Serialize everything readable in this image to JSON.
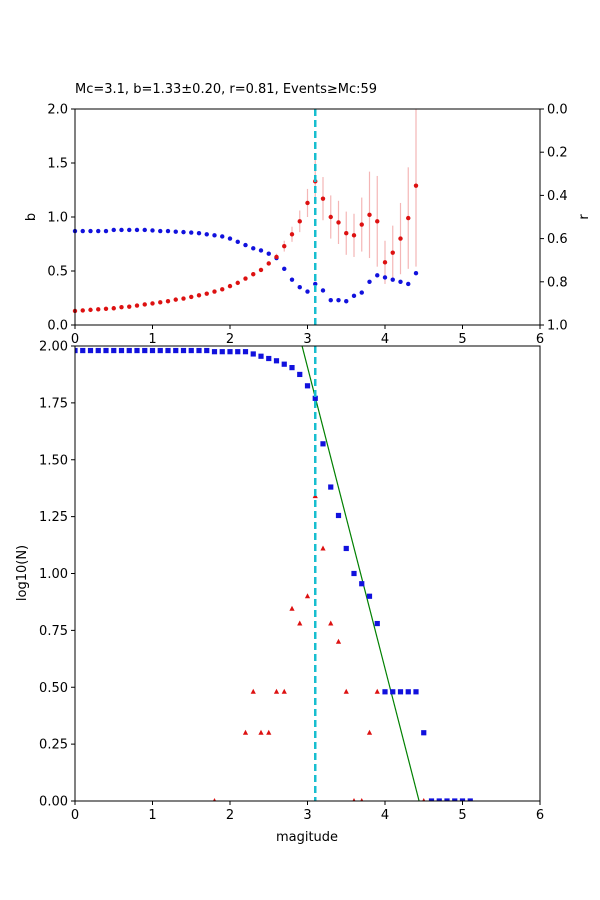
{
  "chart_data": [
    {
      "type": "scatter",
      "title": "Mc=3.1, b=1.33±0.20, r=0.81, Events≥Mc:59",
      "xlabel": "",
      "ylabel": "b",
      "y2label": "r",
      "xlim": [
        0,
        6
      ],
      "ylim": [
        0,
        2
      ],
      "y2lim": [
        1,
        0
      ],
      "xticks": [
        "0",
        "1",
        "2",
        "3",
        "4",
        "5",
        "6"
      ],
      "yticks": [
        "0.0",
        "0.5",
        "1.0",
        "1.5",
        "2.0"
      ],
      "y2ticks": [
        "0.0",
        "0.2",
        "0.4",
        "0.6",
        "0.8",
        "1.0"
      ],
      "mc_line": 3.1,
      "series": [
        {
          "axis": "left",
          "color": "#dd1111",
          "errcolor": "#f4b6b6",
          "points": [
            [
              0.0,
              0.13,
              0
            ],
            [
              0.1,
              0.135,
              0
            ],
            [
              0.2,
              0.14,
              0
            ],
            [
              0.3,
              0.145,
              0
            ],
            [
              0.4,
              0.15,
              0
            ],
            [
              0.5,
              0.155,
              0
            ],
            [
              0.6,
              0.165,
              0
            ],
            [
              0.7,
              0.17,
              0
            ],
            [
              0.8,
              0.18,
              0
            ],
            [
              0.9,
              0.19,
              0
            ],
            [
              1.0,
              0.2,
              0
            ],
            [
              1.1,
              0.21,
              0
            ],
            [
              1.2,
              0.22,
              0
            ],
            [
              1.3,
              0.235,
              0
            ],
            [
              1.4,
              0.245,
              0
            ],
            [
              1.5,
              0.26,
              0
            ],
            [
              1.6,
              0.275,
              0
            ],
            [
              1.7,
              0.29,
              0
            ],
            [
              1.8,
              0.31,
              0
            ],
            [
              1.9,
              0.33,
              0
            ],
            [
              2.0,
              0.36,
              0
            ],
            [
              2.1,
              0.39,
              0
            ],
            [
              2.2,
              0.43,
              0
            ],
            [
              2.3,
              0.47,
              0
            ],
            [
              2.4,
              0.51,
              0
            ],
            [
              2.5,
              0.57,
              0.02
            ],
            [
              2.6,
              0.63,
              0.03
            ],
            [
              2.7,
              0.73,
              0.05
            ],
            [
              2.8,
              0.84,
              0.07
            ],
            [
              2.9,
              0.96,
              0.1
            ],
            [
              3.0,
              1.13,
              0.13
            ],
            [
              3.1,
              1.33,
              0.2
            ],
            [
              3.2,
              1.17,
              0.2
            ],
            [
              3.3,
              1.0,
              0.2
            ],
            [
              3.4,
              0.95,
              0.2
            ],
            [
              3.5,
              0.85,
              0.2
            ],
            [
              3.6,
              0.83,
              0.2
            ],
            [
              3.7,
              0.93,
              0.25
            ],
            [
              3.8,
              1.02,
              0.4
            ],
            [
              3.9,
              0.96,
              0.42
            ],
            [
              4.0,
              0.58,
              0.2
            ],
            [
              4.1,
              0.67,
              0.25
            ],
            [
              4.2,
              0.8,
              0.33
            ],
            [
              4.3,
              0.99,
              0.47
            ],
            [
              4.4,
              1.29,
              0.75
            ]
          ]
        },
        {
          "axis": "right",
          "color": "#1111dd",
          "points": [
            [
              0.0,
              0.565
            ],
            [
              0.1,
              0.565
            ],
            [
              0.2,
              0.565
            ],
            [
              0.3,
              0.565
            ],
            [
              0.4,
              0.565
            ],
            [
              0.5,
              0.56
            ],
            [
              0.6,
              0.56
            ],
            [
              0.7,
              0.56
            ],
            [
              0.8,
              0.56
            ],
            [
              0.9,
              0.56
            ],
            [
              1.0,
              0.562
            ],
            [
              1.1,
              0.565
            ],
            [
              1.2,
              0.565
            ],
            [
              1.3,
              0.568
            ],
            [
              1.4,
              0.57
            ],
            [
              1.5,
              0.572
            ],
            [
              1.6,
              0.575
            ],
            [
              1.7,
              0.58
            ],
            [
              1.8,
              0.585
            ],
            [
              1.9,
              0.59
            ],
            [
              2.0,
              0.6
            ],
            [
              2.1,
              0.615
            ],
            [
              2.2,
              0.63
            ],
            [
              2.3,
              0.645
            ],
            [
              2.4,
              0.655
            ],
            [
              2.5,
              0.67
            ],
            [
              2.6,
              0.69
            ],
            [
              2.7,
              0.74
            ],
            [
              2.8,
              0.79
            ],
            [
              2.9,
              0.825
            ],
            [
              3.0,
              0.845
            ],
            [
              3.1,
              0.81
            ],
            [
              3.2,
              0.84
            ],
            [
              3.3,
              0.885
            ],
            [
              3.4,
              0.885
            ],
            [
              3.5,
              0.89
            ],
            [
              3.6,
              0.865
            ],
            [
              3.7,
              0.85
            ],
            [
              3.8,
              0.8
            ],
            [
              3.9,
              0.77
            ],
            [
              4.0,
              0.78
            ],
            [
              4.1,
              0.79
            ],
            [
              4.2,
              0.8
            ],
            [
              4.3,
              0.81
            ],
            [
              4.4,
              0.76
            ]
          ]
        }
      ]
    },
    {
      "type": "scatter",
      "title": "",
      "xlabel": "magitude",
      "ylabel": "log10(N)",
      "xlim": [
        0,
        6
      ],
      "ylim": [
        0,
        2
      ],
      "xticks": [
        "0",
        "1",
        "2",
        "3",
        "4",
        "5",
        "6"
      ],
      "yticks": [
        "0.00",
        "0.25",
        "0.50",
        "0.75",
        "1.00",
        "1.25",
        "1.50",
        "1.75",
        "2.00"
      ],
      "mc_line": 3.1,
      "fit_line": {
        "color": "#008000",
        "from": [
          2.93,
          2.0
        ],
        "to": [
          4.44,
          0.0
        ]
      },
      "series": [
        {
          "marker": "square",
          "color": "#1111dd",
          "points": [
            [
              0.0,
              1.98
            ],
            [
              0.1,
              1.98
            ],
            [
              0.2,
              1.98
            ],
            [
              0.3,
              1.98
            ],
            [
              0.4,
              1.98
            ],
            [
              0.5,
              1.98
            ],
            [
              0.6,
              1.98
            ],
            [
              0.7,
              1.98
            ],
            [
              0.8,
              1.98
            ],
            [
              0.9,
              1.98
            ],
            [
              1.0,
              1.98
            ],
            [
              1.1,
              1.98
            ],
            [
              1.2,
              1.98
            ],
            [
              1.3,
              1.98
            ],
            [
              1.4,
              1.98
            ],
            [
              1.5,
              1.98
            ],
            [
              1.6,
              1.98
            ],
            [
              1.7,
              1.98
            ],
            [
              1.8,
              1.975
            ],
            [
              1.9,
              1.975
            ],
            [
              2.0,
              1.975
            ],
            [
              2.1,
              1.975
            ],
            [
              2.2,
              1.975
            ],
            [
              2.3,
              1.965
            ],
            [
              2.4,
              1.955
            ],
            [
              2.5,
              1.945
            ],
            [
              2.6,
              1.935
            ],
            [
              2.7,
              1.92
            ],
            [
              2.8,
              1.905
            ],
            [
              2.9,
              1.875
            ],
            [
              3.0,
              1.825
            ],
            [
              3.1,
              1.77
            ],
            [
              3.2,
              1.57
            ],
            [
              3.3,
              1.38
            ],
            [
              3.4,
              1.255
            ],
            [
              3.5,
              1.11
            ],
            [
              3.6,
              1.0
            ],
            [
              3.7,
              0.955
            ],
            [
              3.8,
              0.9
            ],
            [
              3.9,
              0.78
            ],
            [
              4.0,
              0.48
            ],
            [
              4.1,
              0.48
            ],
            [
              4.2,
              0.48
            ],
            [
              4.3,
              0.48
            ],
            [
              4.4,
              0.48
            ],
            [
              4.5,
              0.3
            ],
            [
              4.6,
              0.0
            ],
            [
              4.7,
              0.0
            ],
            [
              4.8,
              0.0
            ],
            [
              4.9,
              0.0
            ],
            [
              5.0,
              0.0
            ],
            [
              5.1,
              0.0
            ]
          ]
        },
        {
          "marker": "triangle",
          "color": "#dd1111",
          "points": [
            [
              1.8,
              0.0
            ],
            [
              2.2,
              0.3
            ],
            [
              2.3,
              0.48
            ],
            [
              2.4,
              0.3
            ],
            [
              2.5,
              0.3
            ],
            [
              2.6,
              0.48
            ],
            [
              2.7,
              0.48
            ],
            [
              2.8,
              0.845
            ],
            [
              2.9,
              0.78
            ],
            [
              3.0,
              0.9
            ],
            [
              3.1,
              1.34
            ],
            [
              3.2,
              1.11
            ],
            [
              3.3,
              0.78
            ],
            [
              3.4,
              0.7
            ],
            [
              3.5,
              0.48
            ],
            [
              3.6,
              0.0
            ],
            [
              3.7,
              0.0
            ],
            [
              3.8,
              0.3
            ],
            [
              3.9,
              0.48
            ],
            [
              4.5,
              0.0
            ]
          ]
        }
      ]
    }
  ]
}
